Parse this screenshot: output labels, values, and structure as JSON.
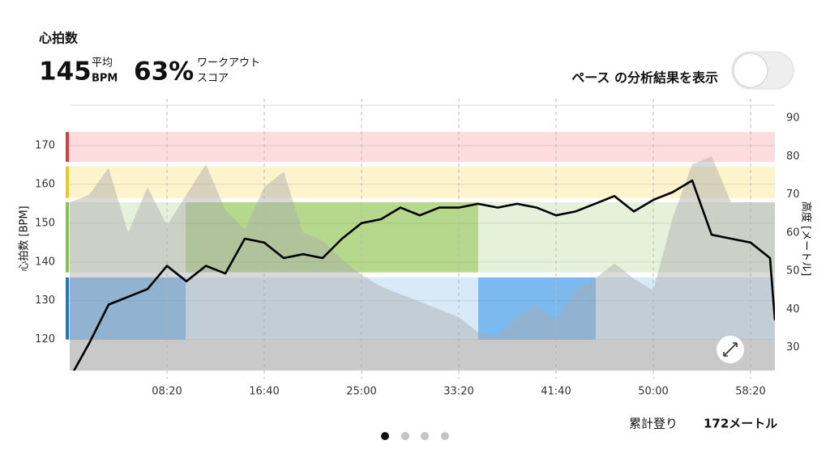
{
  "header": {
    "title": "心拍数",
    "avg_value": "145",
    "avg_label_1": "平均",
    "avg_label_2": "BPM",
    "score_value": "63%",
    "score_label_1": "ワークアウト",
    "score_label_2": "スコア"
  },
  "toggle_label": "ペース の分析結果を表示",
  "footer": {
    "label": "累計登り",
    "value": "172メートル"
  },
  "chart_data": {
    "type": "line",
    "y_label": "心拍数 [BPM]",
    "y2_label": "高度 [メートル]",
    "x": [
      0,
      100,
      200,
      300,
      400,
      500,
      600,
      700,
      800,
      900,
      1000,
      1100,
      1200,
      1300,
      1400,
      1500,
      1600,
      1700,
      1800,
      1900,
      2000,
      2100,
      2200,
      2300,
      2400,
      2500,
      2600,
      2700,
      2800,
      2900,
      3000,
      3100,
      3200,
      3300,
      3400,
      3500,
      3600,
      3625
    ],
    "series": [
      {
        "color": "#aaaaaa",
        "axis": "y2",
        "values": [
          68,
          70,
          77,
          60,
          72,
          62,
          70,
          78,
          66,
          61,
          72,
          76,
          60,
          58,
          53,
          49,
          46,
          44,
          42,
          40,
          38,
          34,
          33,
          38,
          41,
          37,
          45,
          48,
          52,
          48,
          45,
          64,
          78,
          80,
          68,
          68,
          68,
          68
        ]
      },
      {
        "color": "#000000",
        "values": [
          110,
          119,
          129,
          131,
          133,
          139,
          135,
          139,
          137,
          146,
          145,
          141,
          142,
          141,
          146,
          150,
          151,
          154,
          152,
          154,
          154,
          155,
          154,
          155,
          154,
          152,
          153,
          155,
          157,
          153,
          156,
          158,
          161,
          147,
          146,
          145,
          141,
          125
        ]
      }
    ],
    "zones": [
      {
        "low": 165.8,
        "high": 173.5,
        "color": "#fcdcdc",
        "edge": "#e53935"
      },
      {
        "low": 156.5,
        "high": 164.6,
        "color": "#fdf3cc",
        "edge": "#f5c518"
      },
      {
        "low": 137.3,
        "high": 155.4,
        "color": "#e6f1dc",
        "edge": "#8bc34a"
      },
      {
        "low": 120,
        "high": 136,
        "color": "#d8e9f7",
        "edge": "#1a7ac4"
      }
    ],
    "highlights": [
      {
        "zone": 2,
        "start": 596,
        "end": 2100,
        "color": "#b6d88c"
      },
      {
        "zone": 3,
        "start": 0,
        "end": 596,
        "color": "#7cb9ee"
      },
      {
        "zone": 3,
        "start": 2100,
        "end": 2704,
        "color": "#7cb9ee"
      }
    ],
    "xlim": [
      0,
      3625
    ],
    "xticks": [
      {
        "value": 500,
        "label": "08:20"
      },
      {
        "value": 1000,
        "label": "16:40"
      },
      {
        "value": 1500,
        "label": "25:00"
      },
      {
        "value": 2000,
        "label": "33:20"
      },
      {
        "value": 2500,
        "label": "41:40"
      },
      {
        "value": 3000,
        "label": "50:00"
      },
      {
        "value": 3500,
        "label": "58:20"
      }
    ],
    "ylim": [
      112,
      180
    ],
    "yticks": [
      120,
      130,
      140,
      150,
      160,
      170
    ],
    "y2lim": [
      24,
      93
    ],
    "y2ticks": [
      30,
      40,
      50,
      60,
      70,
      80,
      90
    ]
  }
}
